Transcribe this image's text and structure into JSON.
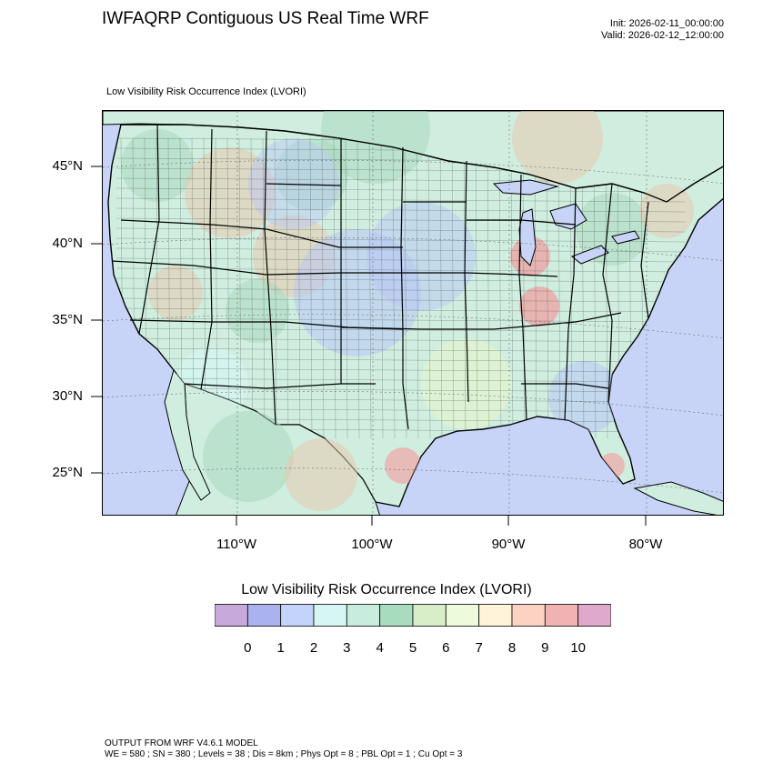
{
  "header": {
    "title": "IWFAQRP Contiguous US Real Time WRF",
    "init": "Init: 2026-02-11_00:00:00",
    "valid": "Valid: 2026-02-12_12:00:00"
  },
  "map": {
    "subtitle": "Low Visibility Risk Occurrence Index   (LVORI)",
    "lat_labels": [
      "45°N",
      "40°N",
      "35°N",
      "30°N",
      "25°N"
    ],
    "lon_labels": [
      "110°W",
      "100°W",
      "90°W",
      "80°W"
    ],
    "colors": {
      "ocean": "#c8d4f7",
      "land_base": "#cfeee0",
      "terrain_green": "#a9d9bd",
      "terrain_tan": "#e8c9ad",
      "state_line": "#000000",
      "county_line": "#333333"
    }
  },
  "colorbar": {
    "title": "Low Visibility Risk Occurrence Index  (LVORI)",
    "labels": [
      "0",
      "1",
      "2",
      "3",
      "4",
      "5",
      "6",
      "7",
      "8",
      "9",
      "10"
    ],
    "colors": [
      "#c8a9dc",
      "#aab3ee",
      "#c4d3fb",
      "#d5f6f3",
      "#c8ecdd",
      "#a8dcbf",
      "#d7eec8",
      "#eefadc",
      "#fff3d9",
      "#fcd2c3",
      "#f1b2b3",
      "#dea9cc"
    ]
  },
  "footer": {
    "line1": "OUTPUT FROM WRF V4.6.1 MODEL",
    "line2": "WE = 580 ; SN = 380 ; Levels = 38 ; Dis = 8km ; Phys Opt = 8 ; PBL Opt = 1 ; Cu Opt = 3"
  }
}
